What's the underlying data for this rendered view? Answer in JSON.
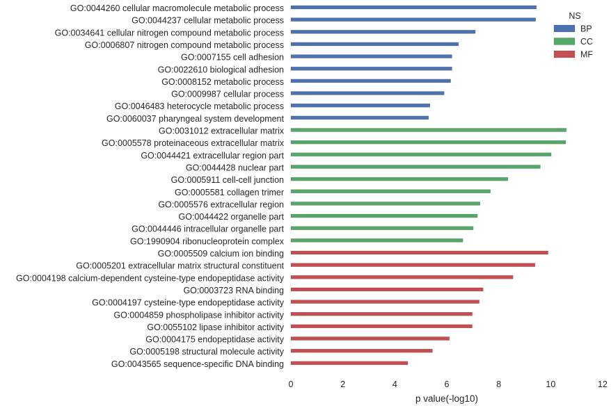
{
  "chart_data": {
    "type": "bar",
    "orientation": "horizontal",
    "xlabel": "p value(-log10)",
    "ylabel": "",
    "xlim": [
      0,
      12
    ],
    "xticks": [
      "0",
      "2",
      "4",
      "6",
      "8",
      "10",
      "12"
    ],
    "grid": false,
    "legend": {
      "title": "NS",
      "placement": "top-right",
      "entries": [
        {
          "name": "BP",
          "color": "#4c72b0"
        },
        {
          "name": "CC",
          "color": "#55a868"
        },
        {
          "name": "MF",
          "color": "#c44e52"
        }
      ]
    },
    "items": [
      {
        "label": "GO:0044260 cellular macromolecule metabolic process",
        "value": 9.45,
        "ns": "BP"
      },
      {
        "label": "GO:0044237 cellular metabolic process",
        "value": 9.42,
        "ns": "BP"
      },
      {
        "label": "GO:0034641 cellular nitrogen compound metabolic process",
        "value": 7.1,
        "ns": "BP"
      },
      {
        "label": "GO:0006807 nitrogen compound metabolic process",
        "value": 6.45,
        "ns": "BP"
      },
      {
        "label": "GO:0007155 cell adhesion",
        "value": 6.2,
        "ns": "BP"
      },
      {
        "label": "GO:0022610 biological adhesion",
        "value": 6.2,
        "ns": "BP"
      },
      {
        "label": "GO:0008152 metabolic process",
        "value": 6.15,
        "ns": "BP"
      },
      {
        "label": "GO:0009987 cellular process",
        "value": 5.9,
        "ns": "BP"
      },
      {
        "label": "GO:0046483 heterocycle metabolic process",
        "value": 5.35,
        "ns": "BP"
      },
      {
        "label": "GO:0060037 pharyngeal system development",
        "value": 5.3,
        "ns": "BP"
      },
      {
        "label": "GO:0031012 extracellular matrix",
        "value": 10.6,
        "ns": "CC"
      },
      {
        "label": "GO:0005578 proteinaceous extracellular matrix",
        "value": 10.58,
        "ns": "CC"
      },
      {
        "label": "GO:0044421 extracellular region part",
        "value": 10.02,
        "ns": "CC"
      },
      {
        "label": "GO:0044428 nuclear part",
        "value": 9.6,
        "ns": "CC"
      },
      {
        "label": "GO:0005911 cell-cell junction",
        "value": 8.35,
        "ns": "CC"
      },
      {
        "label": "GO:0005581 collagen trimer",
        "value": 7.68,
        "ns": "CC"
      },
      {
        "label": "GO:0005576 extracellular region",
        "value": 7.28,
        "ns": "CC"
      },
      {
        "label": "GO:0044422 organelle part",
        "value": 7.18,
        "ns": "CC"
      },
      {
        "label": "GO:0044446 intracellular organelle part",
        "value": 7.02,
        "ns": "CC"
      },
      {
        "label": "GO:1990904 ribonucleoprotein complex",
        "value": 6.62,
        "ns": "CC"
      },
      {
        "label": "GO:0005509 calcium ion binding",
        "value": 9.9,
        "ns": "MF"
      },
      {
        "label": "GO:0005201 extracellular matrix structural constituent",
        "value": 9.4,
        "ns": "MF"
      },
      {
        "label": "GO:0004198 calcium-dependent cysteine-type endopeptidase activity",
        "value": 8.55,
        "ns": "MF"
      },
      {
        "label": "GO:0003723 RNA binding",
        "value": 7.4,
        "ns": "MF"
      },
      {
        "label": "GO:0004197 cysteine-type endopeptidase activity",
        "value": 7.25,
        "ns": "MF"
      },
      {
        "label": "GO:0004859 phospholipase inhibitor activity",
        "value": 6.98,
        "ns": "MF"
      },
      {
        "label": "GO:0055102 lipase inhibitor activity",
        "value": 6.98,
        "ns": "MF"
      },
      {
        "label": "GO:0004175 endopeptidase activity",
        "value": 6.1,
        "ns": "MF"
      },
      {
        "label": "GO:0005198 structural molecule activity",
        "value": 5.45,
        "ns": "MF"
      },
      {
        "label": "GO:0043565 sequence-specific DNA binding",
        "value": 4.5,
        "ns": "MF"
      }
    ]
  }
}
